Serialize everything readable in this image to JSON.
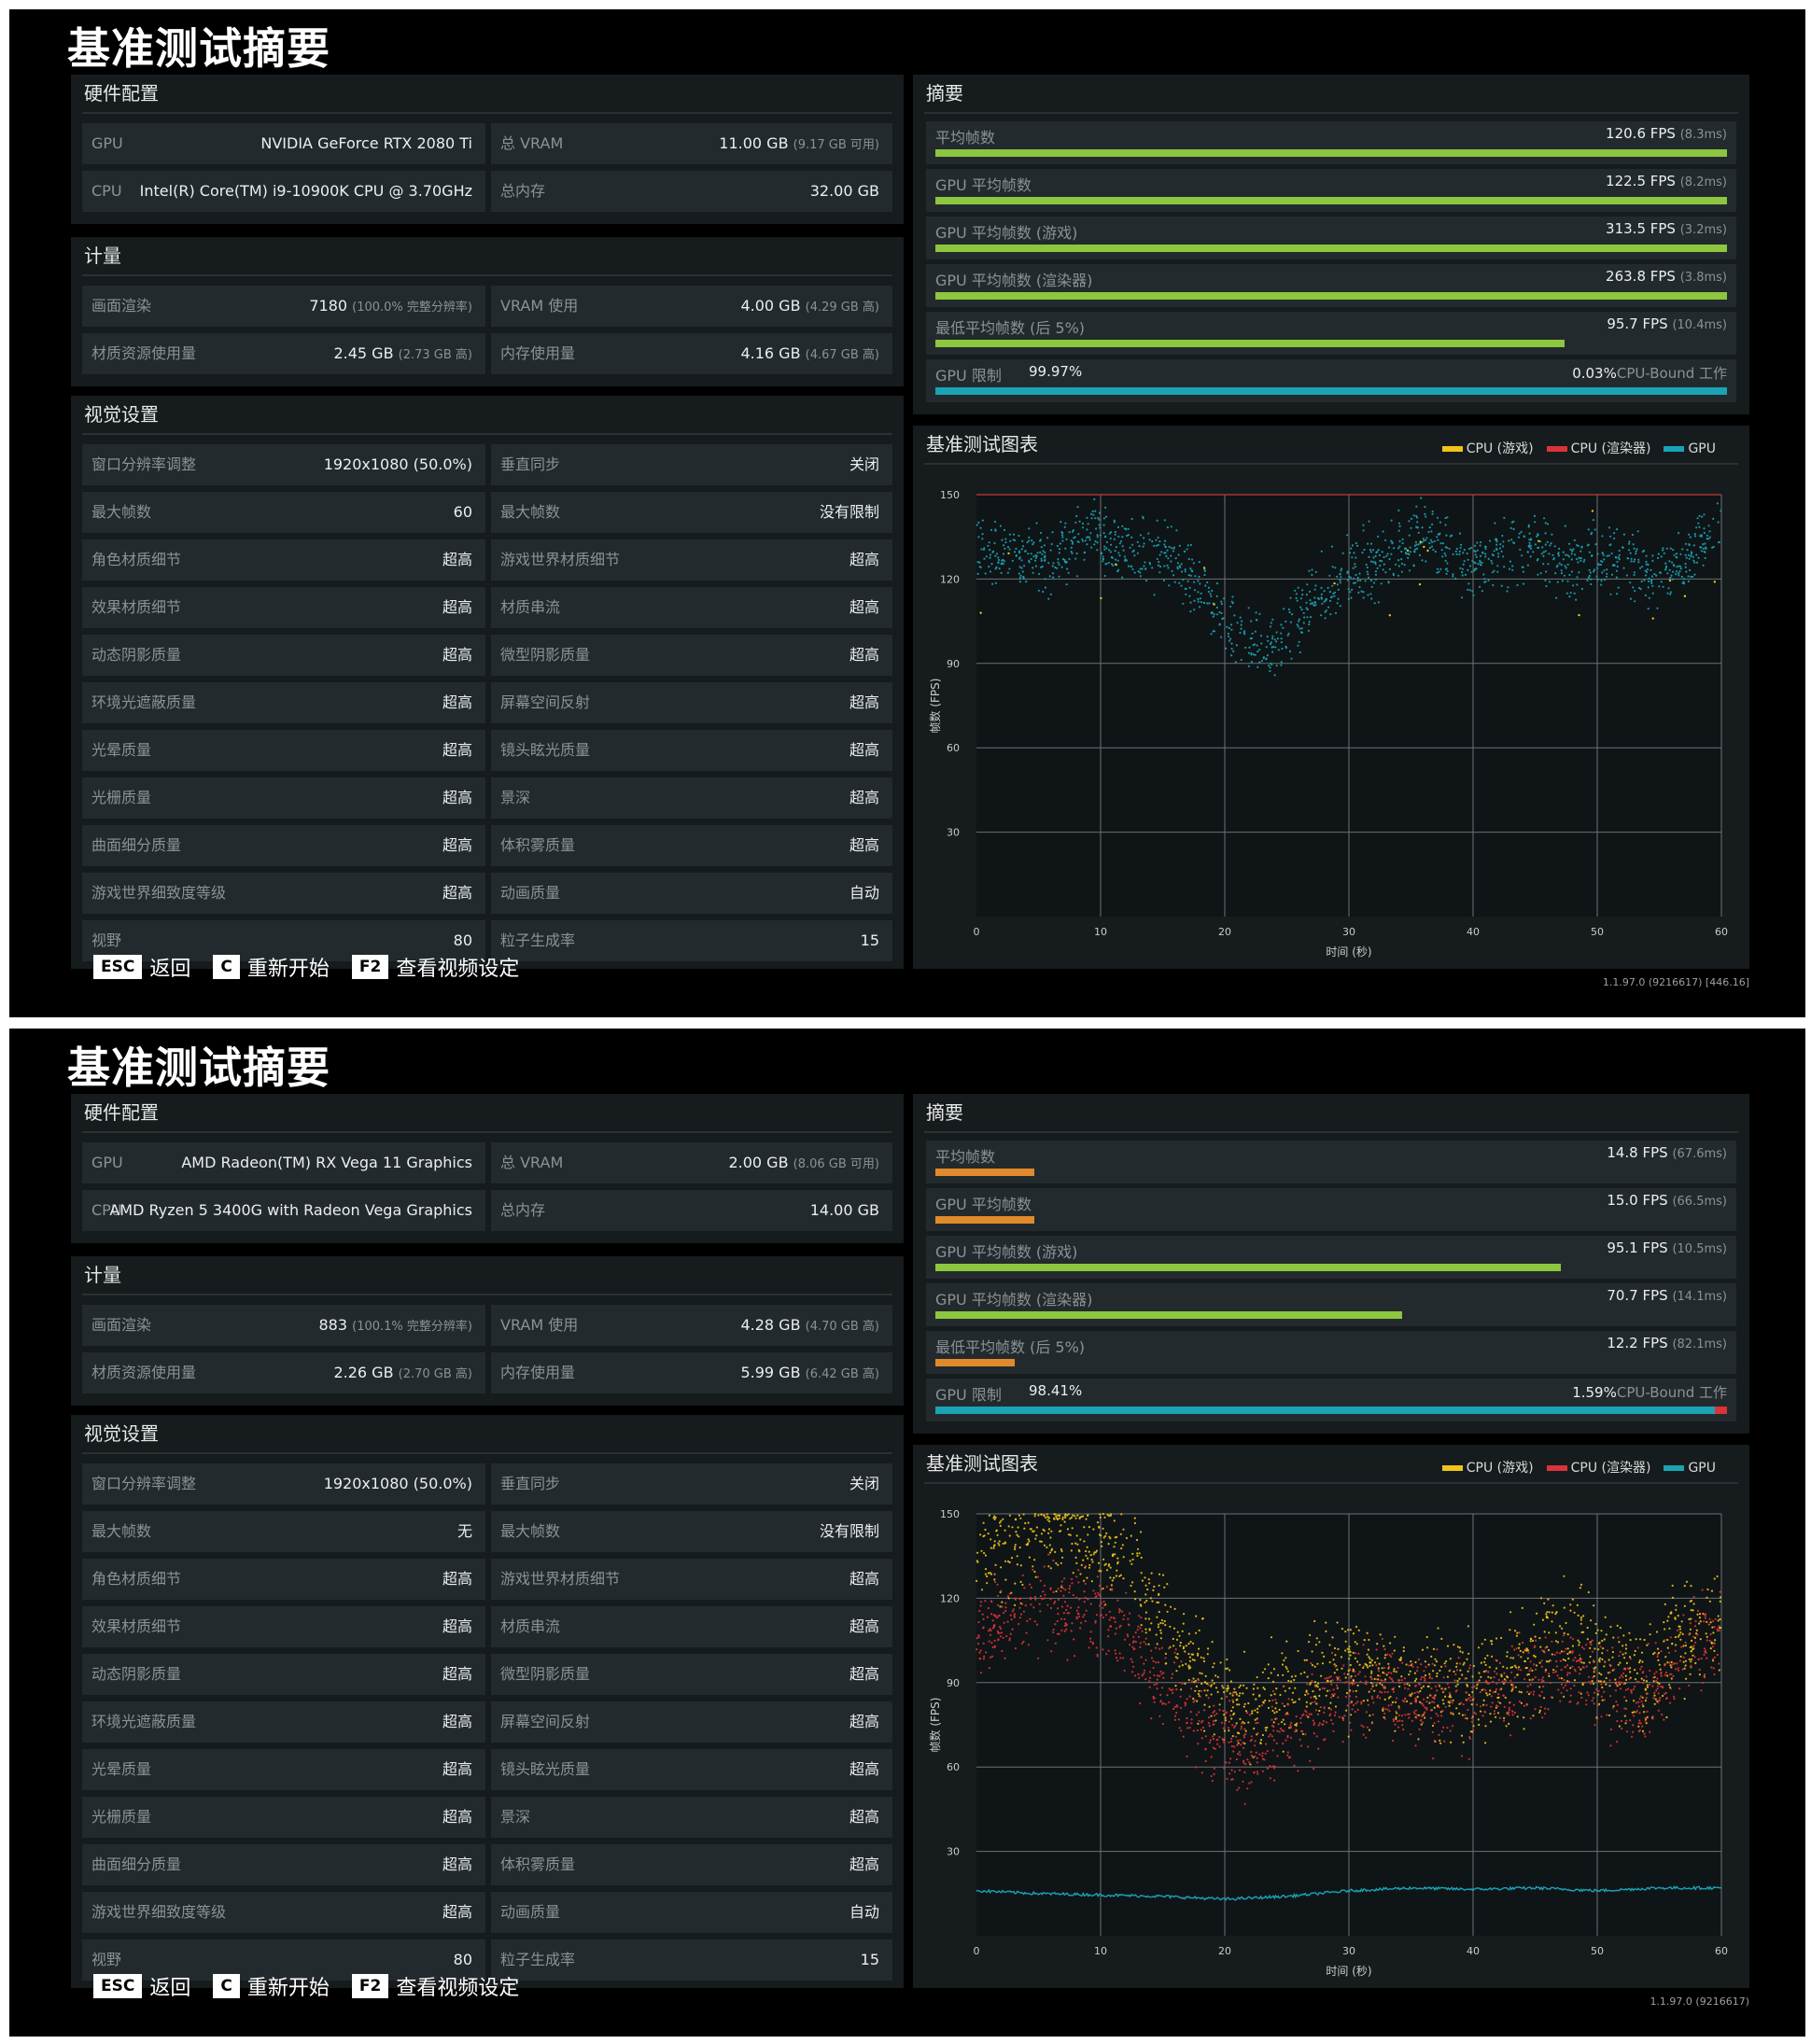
{
  "screens": [
    {
      "title": "基准测试摘要",
      "hardware": {
        "header": "硬件配置",
        "gpu_label": "GPU",
        "gpu_value": "NVIDIA GeForce RTX 2080 Ti",
        "cpu_label": "CPU",
        "cpu_value": "Intel(R) Core(TM) i9-10900K CPU @ 3.70GHz",
        "vram_label": "总 VRAM",
        "vram_value": "11.00 GB",
        "vram_sub": "(9.17 GB 可用)",
        "mem_label": "总内存",
        "mem_value": "32.00 GB"
      },
      "metrics": {
        "header": "计量",
        "render_label": "画面渲染",
        "render_value": "7180",
        "render_sub": "(100.0% 完整分辨率)",
        "vram_use_label": "VRAM 使用",
        "vram_use_value": "4.00 GB",
        "vram_use_sub": "(4.29 GB 高)",
        "tex_label": "材质资源使用量",
        "tex_value": "2.45 GB",
        "tex_sub": "(2.73 GB 高)",
        "mem_use_label": "内存使用量",
        "mem_use_value": "4.16 GB",
        "mem_use_sub": "(4.67 GB 高)"
      },
      "visual": {
        "header": "视觉设置",
        "rows": [
          {
            "l_label": "窗口分辨率调整",
            "l_value": "1920x1080 (50.0%)",
            "r_label": "垂直同步",
            "r_value": "关闭"
          },
          {
            "l_label": "最大帧数",
            "l_value": "60",
            "r_label": "最大帧数",
            "r_value": "没有限制"
          },
          {
            "l_label": "角色材质细节",
            "l_value": "超高",
            "r_label": "游戏世界材质细节",
            "r_value": "超高"
          },
          {
            "l_label": "效果材质细节",
            "l_value": "超高",
            "r_label": "材质串流",
            "r_value": "超高"
          },
          {
            "l_label": "动态阴影质量",
            "l_value": "超高",
            "r_label": "微型阴影质量",
            "r_value": "超高"
          },
          {
            "l_label": "环境光遮蔽质量",
            "l_value": "超高",
            "r_label": "屏幕空间反射",
            "r_value": "超高"
          },
          {
            "l_label": "光晕质量",
            "l_value": "超高",
            "r_label": "镜头眩光质量",
            "r_value": "超高"
          },
          {
            "l_label": "光栅质量",
            "l_value": "超高",
            "r_label": "景深",
            "r_value": "超高"
          },
          {
            "l_label": "曲面细分质量",
            "l_value": "超高",
            "r_label": "体积雾质量",
            "r_value": "超高"
          },
          {
            "l_label": "游戏世界细致度等级",
            "l_value": "超高",
            "r_label": "动画质量",
            "r_value": "自动"
          },
          {
            "l_label": "视野",
            "l_value": "80",
            "r_label": "粒子生成率",
            "r_value": "15"
          }
        ]
      },
      "summary": {
        "header": "摘要",
        "rows": [
          {
            "label": "平均帧数",
            "value": "120.6 FPS",
            "sub": "(8.3ms)",
            "fraction": 1.0,
            "color": "#8dc63f"
          },
          {
            "label": "GPU 平均帧数",
            "value": "122.5 FPS",
            "sub": "(8.2ms)",
            "fraction": 1.0,
            "color": "#8dc63f"
          },
          {
            "label": "GPU 平均帧数 (游戏)",
            "value": "313.5 FPS",
            "sub": "(3.2ms)",
            "fraction": 1.0,
            "color": "#8dc63f"
          },
          {
            "label": "GPU 平均帧数 (渲染器)",
            "value": "263.8 FPS",
            "sub": "(3.8ms)",
            "fraction": 1.0,
            "color": "#8dc63f"
          },
          {
            "label": "最低平均帧数 (后 5%)",
            "value": "95.7 FPS",
            "sub": "(10.4ms)",
            "fraction": 0.795,
            "color": "#8dc63f"
          }
        ],
        "limit": {
          "label": "GPU 限制",
          "gpu_pct": "99.97%",
          "cpu_pct": "0.03%",
          "cpu_text": "CPU-Bound 工作",
          "gpu_fraction": 0.9997,
          "gpu_color": "#1aa3b5",
          "cpu_color": "#d9343a"
        }
      },
      "chart_title": "基准测试图表",
      "legend": [
        {
          "name": "CPU (游戏)",
          "color": "#f0c419"
        },
        {
          "name": "CPU (渲染器)",
          "color": "#d9343a"
        },
        {
          "name": "GPU",
          "color": "#1aa3b5"
        }
      ],
      "chart_data": {
        "type": "scatter",
        "xlabel": "时间 (秒)",
        "ylabel": "帧数 (FPS)",
        "xlim": [
          0,
          60
        ],
        "ylim": [
          0,
          150
        ],
        "xticks": [
          0,
          10,
          20,
          30,
          40,
          50,
          60
        ],
        "yticks": [
          30,
          60,
          90,
          120,
          150
        ],
        "cap_line": 150,
        "series": [
          {
            "name": "GPU",
            "color": "#1aa3b5",
            "spread": 9,
            "x": [
              0,
              3,
              6,
              9,
              12,
              15,
              18,
              21,
              24,
              27,
              30,
              33,
              36,
              39,
              42,
              45,
              48,
              51,
              54,
              57,
              60
            ],
            "y": [
              132,
              128,
              126,
              137,
              130,
              128,
              118,
              98,
              95,
              112,
              122,
              128,
              136,
              125,
              128,
              132,
              124,
              130,
              122,
              125,
              140
            ]
          },
          {
            "name": "CPU (游戏)",
            "color": "#f0c419",
            "spread": 6,
            "x": [
              0,
              60
            ],
            "y": [
              160,
              160
            ],
            "stray": 1
          }
        ]
      },
      "keys": [
        {
          "key": "ESC",
          "label": "返回"
        },
        {
          "key": "C",
          "label": "重新开始"
        },
        {
          "key": "F2",
          "label": "查看视频设定"
        }
      ],
      "version": "1.1.97.0 (9216617) [446.16]"
    },
    {
      "title": "基准测试摘要",
      "hardware": {
        "header": "硬件配置",
        "gpu_label": "GPU",
        "gpu_value": "AMD Radeon(TM) RX Vega 11 Graphics",
        "cpu_label": "CPU",
        "cpu_value": "AMD Ryzen 5 3400G with Radeon Vega Graphics",
        "vram_label": "总 VRAM",
        "vram_value": "2.00 GB",
        "vram_sub": "(8.06 GB 可用)",
        "mem_label": "总内存",
        "mem_value": "14.00 GB"
      },
      "metrics": {
        "header": "计量",
        "render_label": "画面渲染",
        "render_value": "883",
        "render_sub": "(100.1% 完整分辨率)",
        "vram_use_label": "VRAM 使用",
        "vram_use_value": "4.28 GB",
        "vram_use_sub": "(4.70 GB 高)",
        "tex_label": "材质资源使用量",
        "tex_value": "2.26 GB",
        "tex_sub": "(2.70 GB 高)",
        "mem_use_label": "内存使用量",
        "mem_use_value": "5.99 GB",
        "mem_use_sub": "(6.42 GB 高)"
      },
      "visual": {
        "header": "视觉设置",
        "rows": [
          {
            "l_label": "窗口分辨率调整",
            "l_value": "1920x1080 (50.0%)",
            "r_label": "垂直同步",
            "r_value": "关闭"
          },
          {
            "l_label": "最大帧数",
            "l_value": "无",
            "r_label": "最大帧数",
            "r_value": "没有限制"
          },
          {
            "l_label": "角色材质细节",
            "l_value": "超高",
            "r_label": "游戏世界材质细节",
            "r_value": "超高"
          },
          {
            "l_label": "效果材质细节",
            "l_value": "超高",
            "r_label": "材质串流",
            "r_value": "超高"
          },
          {
            "l_label": "动态阴影质量",
            "l_value": "超高",
            "r_label": "微型阴影质量",
            "r_value": "超高"
          },
          {
            "l_label": "环境光遮蔽质量",
            "l_value": "超高",
            "r_label": "屏幕空间反射",
            "r_value": "超高"
          },
          {
            "l_label": "光晕质量",
            "l_value": "超高",
            "r_label": "镜头眩光质量",
            "r_value": "超高"
          },
          {
            "l_label": "光栅质量",
            "l_value": "超高",
            "r_label": "景深",
            "r_value": "超高"
          },
          {
            "l_label": "曲面细分质量",
            "l_value": "超高",
            "r_label": "体积雾质量",
            "r_value": "超高"
          },
          {
            "l_label": "游戏世界细致度等级",
            "l_value": "超高",
            "r_label": "动画质量",
            "r_value": "自动"
          },
          {
            "l_label": "视野",
            "l_value": "80",
            "r_label": "粒子生成率",
            "r_value": "15"
          }
        ]
      },
      "summary": {
        "header": "摘要",
        "rows": [
          {
            "label": "平均帧数",
            "value": "14.8 FPS",
            "sub": "(67.6ms)",
            "fraction": 0.125,
            "color": "#e08a2c"
          },
          {
            "label": "GPU 平均帧数",
            "value": "15.0 FPS",
            "sub": "(66.5ms)",
            "fraction": 0.125,
            "color": "#e08a2c"
          },
          {
            "label": "GPU 平均帧数 (游戏)",
            "value": "95.1 FPS",
            "sub": "(10.5ms)",
            "fraction": 0.79,
            "color": "#8dc63f"
          },
          {
            "label": "GPU 平均帧数 (渲染器)",
            "value": "70.7 FPS",
            "sub": "(14.1ms)",
            "fraction": 0.59,
            "color": "#8dc63f"
          },
          {
            "label": "最低平均帧数 (后 5%)",
            "value": "12.2 FPS",
            "sub": "(82.1ms)",
            "fraction": 0.1,
            "color": "#e08a2c"
          }
        ],
        "limit": {
          "label": "GPU 限制",
          "gpu_pct": "98.41%",
          "cpu_pct": "1.59%",
          "cpu_text": "CPU-Bound 工作",
          "gpu_fraction": 0.9841,
          "gpu_color": "#1aa3b5",
          "cpu_color": "#d9343a"
        }
      },
      "chart_title": "基准测试图表",
      "legend": [
        {
          "name": "CPU (游戏)",
          "color": "#f0c419"
        },
        {
          "name": "CPU (渲染器)",
          "color": "#d9343a"
        },
        {
          "name": "GPU",
          "color": "#1aa3b5"
        }
      ],
      "chart_data": {
        "type": "scatter",
        "xlabel": "时间 (秒)",
        "ylabel": "帧数 (FPS)",
        "xlim": [
          0,
          60
        ],
        "ylim": [
          0,
          150
        ],
        "xticks": [
          0,
          10,
          20,
          30,
          40,
          50,
          60
        ],
        "yticks": [
          30,
          60,
          90,
          120,
          150
        ],
        "series": [
          {
            "name": "CPU (游戏)",
            "color": "#f0c419",
            "spread": 14,
            "x": [
              0,
              3,
              6,
              9,
              12,
              15,
              18,
              21,
              24,
              27,
              30,
              33,
              36,
              39,
              42,
              45,
              48,
              51,
              54,
              57,
              60
            ],
            "y": [
              135,
              140,
              145,
              142,
              135,
              110,
              95,
              80,
              85,
              92,
              95,
              92,
              90,
              88,
              92,
              100,
              108,
              95,
              92,
              105,
              110
            ]
          },
          {
            "name": "CPU (渲染器)",
            "color": "#d9343a",
            "spread": 12,
            "x": [
              0,
              3,
              6,
              9,
              12,
              15,
              18,
              21,
              24,
              27,
              30,
              33,
              36,
              39,
              42,
              45,
              48,
              51,
              54,
              57,
              60
            ],
            "y": [
              108,
              112,
              118,
              115,
              108,
              90,
              75,
              65,
              70,
              78,
              85,
              88,
              84,
              82,
              86,
              92,
              98,
              88,
              84,
              100,
              108
            ]
          },
          {
            "name": "GPU",
            "color": "#1aa3b5",
            "spread": 1,
            "line": true,
            "x": [
              0,
              5,
              10,
              15,
              20,
              25,
              30,
              35,
              40,
              45,
              50,
              55,
              60
            ],
            "y": [
              16,
              15,
              14.5,
              14,
              13,
              14,
              16,
              17,
              16.5,
              17,
              16,
              17,
              17
            ]
          }
        ]
      },
      "keys": [
        {
          "key": "ESC",
          "label": "返回"
        },
        {
          "key": "C",
          "label": "重新开始"
        },
        {
          "key": "F2",
          "label": "查看视频设定"
        }
      ],
      "version": "1.1.97.0 (9216617)"
    }
  ]
}
